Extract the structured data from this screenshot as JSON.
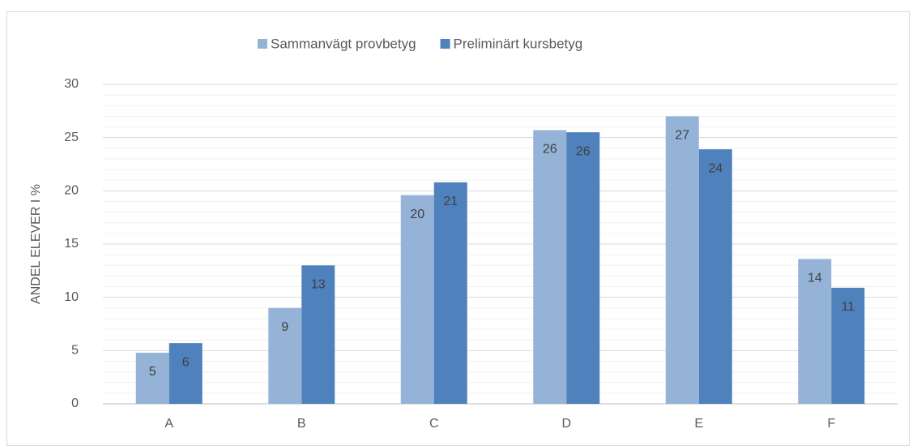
{
  "chart_data": {
    "type": "bar",
    "y_axis_label": "ANDEL ELEVER I %",
    "categories": [
      "A",
      "B",
      "C",
      "D",
      "E",
      "F"
    ],
    "series": [
      {
        "name": "Sammanvägt provbetyg",
        "color": "#95b3d7",
        "values": [
          4.8,
          9.0,
          19.6,
          25.7,
          27.0,
          13.6
        ],
        "value_labels": [
          "5",
          "9",
          "20",
          "26",
          "27",
          "14"
        ]
      },
      {
        "name": "Preliminärt kursbetyg",
        "color": "#4f81bd",
        "values": [
          5.7,
          13.0,
          20.8,
          25.5,
          23.9,
          10.9
        ],
        "value_labels": [
          "6",
          "13",
          "21",
          "26",
          "24",
          "11"
        ]
      }
    ],
    "ylim": [
      0,
      30
    ],
    "yticks": [
      0,
      5,
      10,
      15,
      20,
      25,
      30
    ],
    "grid": true,
    "minor_grid": true,
    "legend": "top"
  }
}
